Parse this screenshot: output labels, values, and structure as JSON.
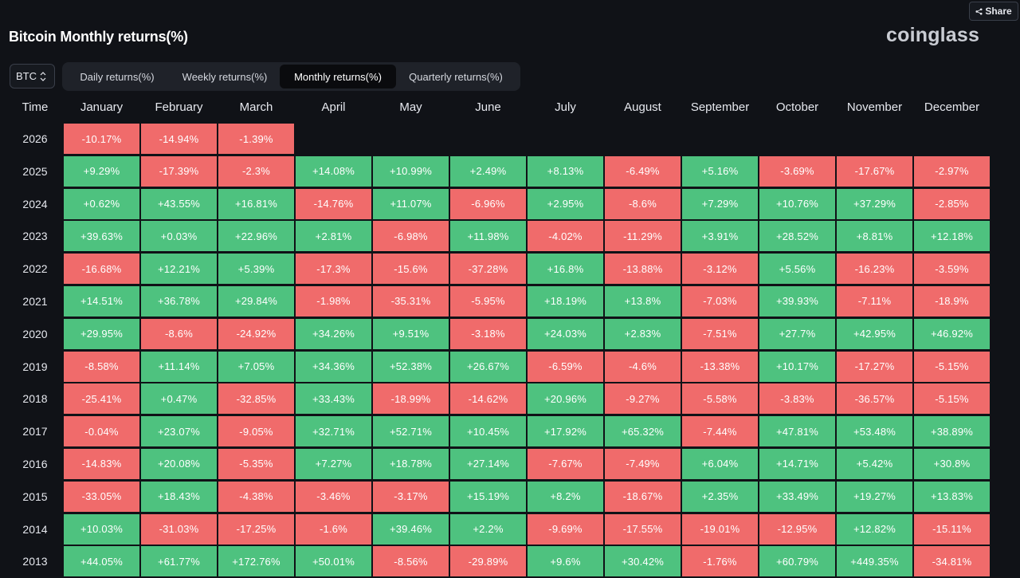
{
  "header": {
    "share_label": "Share",
    "title": "Bitcoin Monthly returns(%)",
    "logo": "coinglass"
  },
  "controls": {
    "coin": "BTC",
    "tabs": [
      {
        "label": "Daily returns(%)",
        "active": false
      },
      {
        "label": "Weekly returns(%)",
        "active": false
      },
      {
        "label": "Monthly returns(%)",
        "active": true
      },
      {
        "label": "Quarterly returns(%)",
        "active": false
      }
    ]
  },
  "colors": {
    "positive": "#4ec27f",
    "negative": "#f06b6b",
    "background": "#101217"
  },
  "chart_data": {
    "type": "table",
    "title": "Bitcoin Monthly returns(%)",
    "corner_label": "Time",
    "columns": [
      "January",
      "February",
      "March",
      "April",
      "May",
      "June",
      "July",
      "August",
      "September",
      "October",
      "November",
      "December"
    ],
    "rows": [
      {
        "year": "2026",
        "values": [
          "-10.17%",
          "-14.94%",
          "-1.39%",
          "",
          "",
          "",
          "",
          "",
          "",
          "",
          "",
          ""
        ]
      },
      {
        "year": "2025",
        "values": [
          "+9.29%",
          "-17.39%",
          "-2.3%",
          "+14.08%",
          "+10.99%",
          "+2.49%",
          "+8.13%",
          "-6.49%",
          "+5.16%",
          "-3.69%",
          "-17.67%",
          "-2.97%"
        ]
      },
      {
        "year": "2024",
        "values": [
          "+0.62%",
          "+43.55%",
          "+16.81%",
          "-14.76%",
          "+11.07%",
          "-6.96%",
          "+2.95%",
          "-8.6%",
          "+7.29%",
          "+10.76%",
          "+37.29%",
          "-2.85%"
        ]
      },
      {
        "year": "2023",
        "values": [
          "+39.63%",
          "+0.03%",
          "+22.96%",
          "+2.81%",
          "-6.98%",
          "+11.98%",
          "-4.02%",
          "-11.29%",
          "+3.91%",
          "+28.52%",
          "+8.81%",
          "+12.18%"
        ]
      },
      {
        "year": "2022",
        "values": [
          "-16.68%",
          "+12.21%",
          "+5.39%",
          "-17.3%",
          "-15.6%",
          "-37.28%",
          "+16.8%",
          "-13.88%",
          "-3.12%",
          "+5.56%",
          "-16.23%",
          "-3.59%"
        ]
      },
      {
        "year": "2021",
        "values": [
          "+14.51%",
          "+36.78%",
          "+29.84%",
          "-1.98%",
          "-35.31%",
          "-5.95%",
          "+18.19%",
          "+13.8%",
          "-7.03%",
          "+39.93%",
          "-7.11%",
          "-18.9%"
        ]
      },
      {
        "year": "2020",
        "values": [
          "+29.95%",
          "-8.6%",
          "-24.92%",
          "+34.26%",
          "+9.51%",
          "-3.18%",
          "+24.03%",
          "+2.83%",
          "-7.51%",
          "+27.7%",
          "+42.95%",
          "+46.92%"
        ]
      },
      {
        "year": "2019",
        "values": [
          "-8.58%",
          "+11.14%",
          "+7.05%",
          "+34.36%",
          "+52.38%",
          "+26.67%",
          "-6.59%",
          "-4.6%",
          "-13.38%",
          "+10.17%",
          "-17.27%",
          "-5.15%"
        ]
      },
      {
        "year": "2018",
        "values": [
          "-25.41%",
          "+0.47%",
          "-32.85%",
          "+33.43%",
          "-18.99%",
          "-14.62%",
          "+20.96%",
          "-9.27%",
          "-5.58%",
          "-3.83%",
          "-36.57%",
          "-5.15%"
        ]
      },
      {
        "year": "2017",
        "values": [
          "-0.04%",
          "+23.07%",
          "-9.05%",
          "+32.71%",
          "+52.71%",
          "+10.45%",
          "+17.92%",
          "+65.32%",
          "-7.44%",
          "+47.81%",
          "+53.48%",
          "+38.89%"
        ]
      },
      {
        "year": "2016",
        "values": [
          "-14.83%",
          "+20.08%",
          "-5.35%",
          "+7.27%",
          "+18.78%",
          "+27.14%",
          "-7.67%",
          "-7.49%",
          "+6.04%",
          "+14.71%",
          "+5.42%",
          "+30.8%"
        ]
      },
      {
        "year": "2015",
        "values": [
          "-33.05%",
          "+18.43%",
          "-4.38%",
          "-3.46%",
          "-3.17%",
          "+15.19%",
          "+8.2%",
          "-18.67%",
          "+2.35%",
          "+33.49%",
          "+19.27%",
          "+13.83%"
        ]
      },
      {
        "year": "2014",
        "values": [
          "+10.03%",
          "-31.03%",
          "-17.25%",
          "-1.6%",
          "+39.46%",
          "+2.2%",
          "-9.69%",
          "-17.55%",
          "-19.01%",
          "-12.95%",
          "+12.82%",
          "-15.11%"
        ]
      },
      {
        "year": "2013",
        "values": [
          "+44.05%",
          "+61.77%",
          "+172.76%",
          "+50.01%",
          "-8.56%",
          "-29.89%",
          "+9.6%",
          "+30.42%",
          "-1.76%",
          "+60.79%",
          "+449.35%",
          "-34.81%"
        ]
      }
    ]
  }
}
